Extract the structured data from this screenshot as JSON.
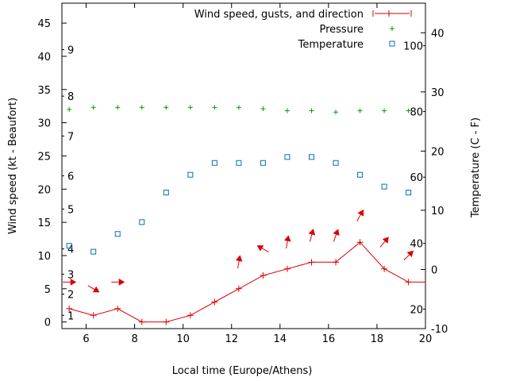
{
  "chart_data": {
    "type": "line",
    "xlabel": "Local time (Europe/Athens)",
    "ylabel": "Wind speed (kt - Beaufort)",
    "y2label": "Temperature (C - F)",
    "xlim": [
      5,
      20
    ],
    "ylim": [
      -1,
      48
    ],
    "y2lim": [
      -10,
      45
    ],
    "x_ticks": [
      "6",
      "8",
      "10",
      "12",
      "14",
      "16",
      "18",
      "20"
    ],
    "y_ticks": [
      "0",
      "5",
      "10",
      "15",
      "20",
      "25",
      "30",
      "35",
      "40",
      "45"
    ],
    "y2_ticks": [
      "-10",
      "0",
      "10",
      "20",
      "30",
      "40"
    ],
    "beaufort_ticks": [
      {
        "label": "1",
        "kt": 1
      },
      {
        "label": "2",
        "kt": 4.2
      },
      {
        "label": "3",
        "kt": 7.2
      },
      {
        "label": "4",
        "kt": 11
      },
      {
        "label": "5",
        "kt": 17
      },
      {
        "label": "6",
        "kt": 22
      },
      {
        "label": "7",
        "kt": 28
      },
      {
        "label": "8",
        "kt": 34
      },
      {
        "label": "9",
        "kt": 41
      }
    ],
    "fahrenheit_ticks": [
      {
        "label": "20",
        "c": -6.7
      },
      {
        "label": "40",
        "c": 4.4
      },
      {
        "label": "60",
        "c": 15.6
      },
      {
        "label": "80",
        "c": 26.7
      },
      {
        "label": "100",
        "c": 37.8
      }
    ],
    "legend": [
      {
        "label": "Wind speed, gusts, and direction",
        "color": "#dd0000",
        "marker": "line-plus"
      },
      {
        "label": "Pressure",
        "color": "#00a000",
        "marker": "plus"
      },
      {
        "label": "Temperature",
        "color": "#0070c0",
        "marker": "square"
      }
    ],
    "legend_position": "top-right",
    "series": [
      {
        "name": "Wind speed",
        "color": "#dd0000",
        "x": [
          5.3,
          6.3,
          7.3,
          8.3,
          9.3,
          10.3,
          11.3,
          12.3,
          13.3,
          14.3,
          15.3,
          16.3,
          17.3,
          18.3,
          19.3,
          20
        ],
        "values": [
          2,
          1,
          2,
          0,
          0,
          1,
          3,
          5,
          7,
          8,
          9,
          9,
          12,
          8,
          6,
          6
        ]
      },
      {
        "name": "Wind direction",
        "color": "#dd0000",
        "x": [
          5.3,
          6.3,
          7.3,
          12.3,
          13.3,
          14.3,
          15.3,
          16.3,
          17.3,
          18.3,
          19.3
        ],
        "y": [
          6,
          5,
          6,
          9,
          11,
          12,
          13,
          13,
          16,
          12,
          10
        ],
        "bearing_deg": [
          90,
          120,
          90,
          10,
          300,
          10,
          15,
          20,
          30,
          40,
          45
        ]
      },
      {
        "name": "Pressure",
        "color": "#00a000",
        "x": [
          5.3,
          6.3,
          7.3,
          8.3,
          9.3,
          10.3,
          11.3,
          12.3,
          13.3,
          14.3,
          15.3,
          16.3,
          17.3,
          18.3,
          19.3
        ],
        "values": [
          32,
          32.3,
          32.3,
          32.3,
          32.3,
          32.3,
          32.3,
          32.3,
          32.1,
          31.8,
          31.8,
          31.6,
          31.8,
          31.8,
          31.8
        ]
      },
      {
        "name": "Temperature",
        "color": "#0070c0",
        "x": [
          5.3,
          6.3,
          7.3,
          8.3,
          9.3,
          10.3,
          11.3,
          12.3,
          13.3,
          14.3,
          15.3,
          16.3,
          17.3,
          18.3,
          19.3
        ],
        "values": [
          4,
          3,
          6,
          8,
          13,
          16,
          18,
          18,
          18,
          19,
          19,
          18,
          16,
          14,
          13
        ]
      }
    ]
  }
}
